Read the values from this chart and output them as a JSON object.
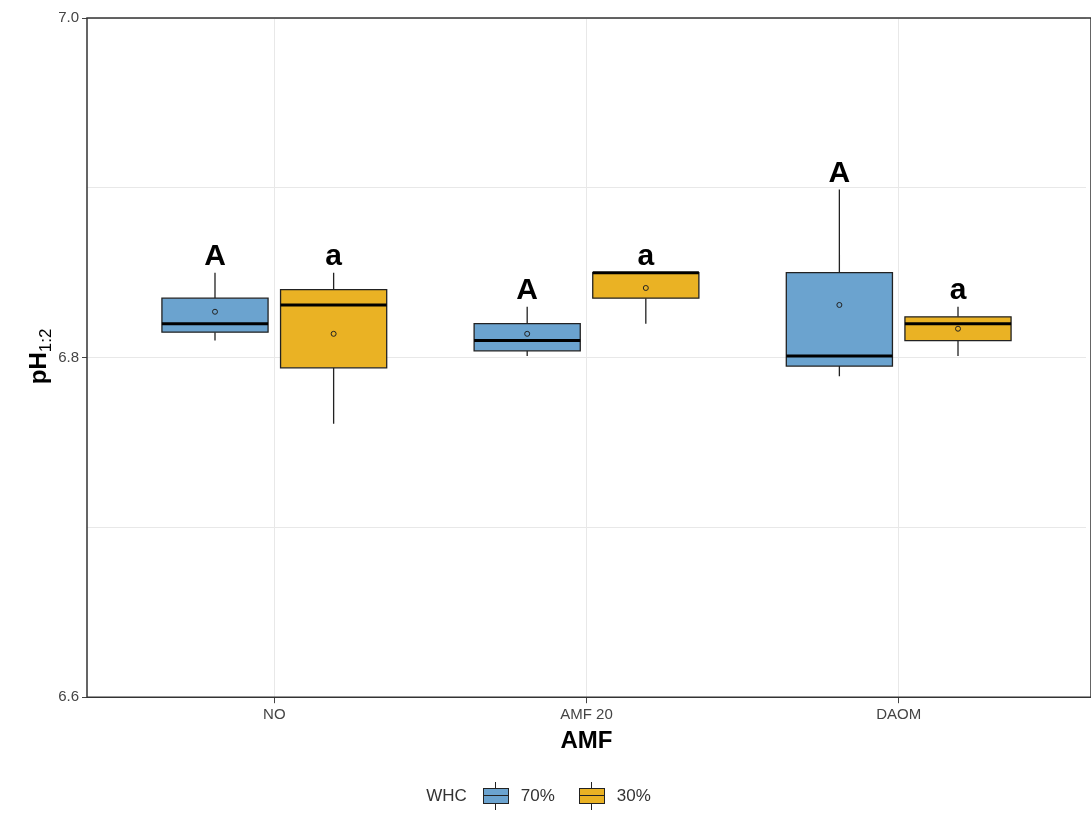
{
  "chart_data": {
    "type": "box",
    "xlabel": "AMF",
    "ylabel": "pH$_{1:2}$",
    "legend_title": "WHC",
    "legend": "bottom",
    "grid": true,
    "marker": "circle",
    "categories": [
      "NO",
      "AMF 20",
      "DAOM"
    ],
    "ylim": [
      6.6,
      7.0
    ],
    "yticks": [
      {
        "value": 6.6,
        "label": "6.6"
      },
      {
        "value": 6.7,
        "label": null
      },
      {
        "value": 6.8,
        "label": "6.8"
      },
      {
        "value": 6.9,
        "label": null
      },
      {
        "value": 7.0,
        "label": "7.0"
      }
    ],
    "series": [
      {
        "name": "70%",
        "color": "#6ba3cf",
        "boxes": [
          {
            "low": 6.81,
            "q1": 6.815,
            "median": 6.82,
            "q3": 6.835,
            "high": 6.85,
            "mean": 6.827
          },
          {
            "low": 6.801,
            "q1": 6.804,
            "median": 6.81,
            "q3": 6.82,
            "high": 6.83,
            "mean": 6.814
          },
          {
            "low": 6.789,
            "q1": 6.795,
            "median": 6.801,
            "q3": 6.85,
            "high": 6.899,
            "mean": 6.831
          }
        ]
      },
      {
        "name": "30%",
        "color": "#eab224",
        "boxes": [
          {
            "low": 6.761,
            "q1": 6.794,
            "median": 6.831,
            "q3": 6.84,
            "high": 6.85,
            "mean": 6.814
          },
          {
            "low": 6.82,
            "q1": 6.835,
            "median": 6.85,
            "q3": 6.85,
            "high": 6.85,
            "mean": 6.841
          },
          {
            "low": 6.801,
            "q1": 6.81,
            "median": 6.82,
            "q3": 6.824,
            "high": 6.83,
            "mean": 6.817
          }
        ]
      }
    ],
    "annotations": [
      "A",
      "a",
      "A",
      "a",
      "A",
      "a"
    ]
  }
}
